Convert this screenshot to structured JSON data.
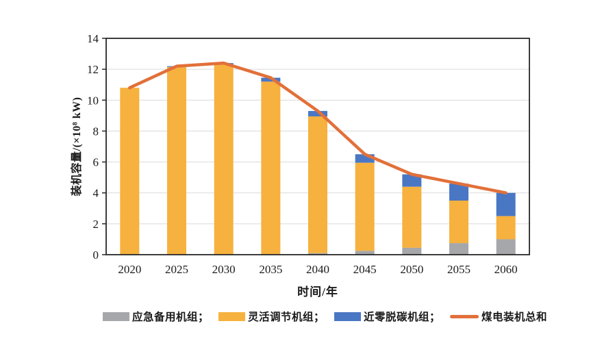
{
  "chart_data": {
    "type": "bar",
    "stacked": true,
    "title": "",
    "xlabel": "时间/年",
    "ylabel": "装机容量/(×10⁸ kW)",
    "categories": [
      "2020",
      "2025",
      "2030",
      "2035",
      "2040",
      "2045",
      "2050",
      "2055",
      "2060"
    ],
    "series": [
      {
        "name": "应急备用机组",
        "type": "bar",
        "color": "#A5A7AA",
        "values": [
          0,
          0,
          0,
          0,
          0.1,
          0.25,
          0.45,
          0.75,
          1.0
        ]
      },
      {
        "name": "灵活调节机组",
        "type": "bar",
        "color": "#F6B13E",
        "values": [
          10.8,
          12.15,
          12.3,
          11.2,
          8.85,
          5.7,
          3.95,
          2.75,
          1.5
        ]
      },
      {
        "name": "近零脱碳机组",
        "type": "bar",
        "color": "#4A77C4",
        "values": [
          0,
          0.05,
          0.1,
          0.25,
          0.35,
          0.55,
          0.8,
          1.1,
          1.5
        ]
      },
      {
        "name": "煤电装机总和",
        "type": "line",
        "color": "#E2703A",
        "values": [
          10.8,
          12.2,
          12.4,
          11.45,
          9.3,
          6.5,
          5.2,
          4.6,
          4.0
        ]
      }
    ],
    "ylim": [
      0,
      14
    ],
    "yticks": [
      0,
      2,
      4,
      6,
      8,
      10,
      12,
      14
    ],
    "grid": true,
    "grid_color": "#D9D9D9",
    "axis_color": "#262626",
    "tick_label_color": "#1a1a1a",
    "legend_position": "bottom"
  },
  "legend": {
    "items": [
      {
        "label": "应急备用机组；",
        "color": "#A5A7AA",
        "swatch": "rect"
      },
      {
        "label": "灵活调节机组；",
        "color": "#F6B13E",
        "swatch": "rect"
      },
      {
        "label": "近零脱碳机组；",
        "color": "#4A77C4",
        "swatch": "rect"
      },
      {
        "label": "煤电装机总和",
        "color": "#E2703A",
        "swatch": "line"
      }
    ]
  }
}
